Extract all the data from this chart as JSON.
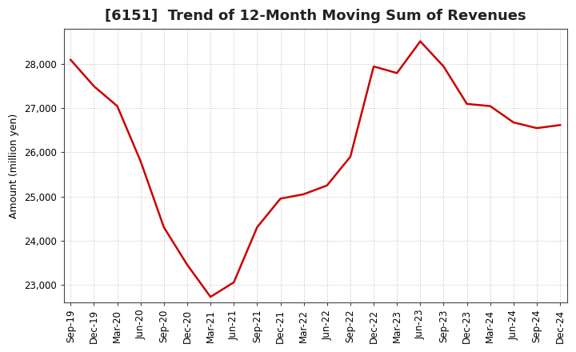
{
  "title": "[6151]  Trend of 12-Month Moving Sum of Revenues",
  "ylabel": "Amount (million yen)",
  "line_color": "#cc0000",
  "line_width": 1.8,
  "background_color": "#ffffff",
  "grid_color": "#aaaaaa",
  "xlabels": [
    "Sep-19",
    "Dec-19",
    "Mar-20",
    "Jun-20",
    "Sep-20",
    "Dec-20",
    "Mar-21",
    "Jun-21",
    "Sep-21",
    "Dec-21",
    "Mar-22",
    "Jun-22",
    "Sep-22",
    "Dec-22",
    "Mar-23",
    "Jun-23",
    "Sep-23",
    "Dec-23",
    "Mar-24",
    "Jun-24",
    "Sep-24",
    "Dec-24"
  ],
  "values": [
    28100,
    27500,
    27050,
    25800,
    24300,
    23450,
    22720,
    23050,
    24300,
    24950,
    25050,
    25250,
    25900,
    27950,
    27800,
    28520,
    27950,
    27100,
    27050,
    26680,
    26550,
    26620
  ],
  "ylim": [
    22600,
    28800
  ],
  "yticks": [
    23000,
    24000,
    25000,
    26000,
    27000,
    28000
  ],
  "title_fontsize": 13,
  "axis_fontsize": 9,
  "tick_fontsize": 8.5
}
